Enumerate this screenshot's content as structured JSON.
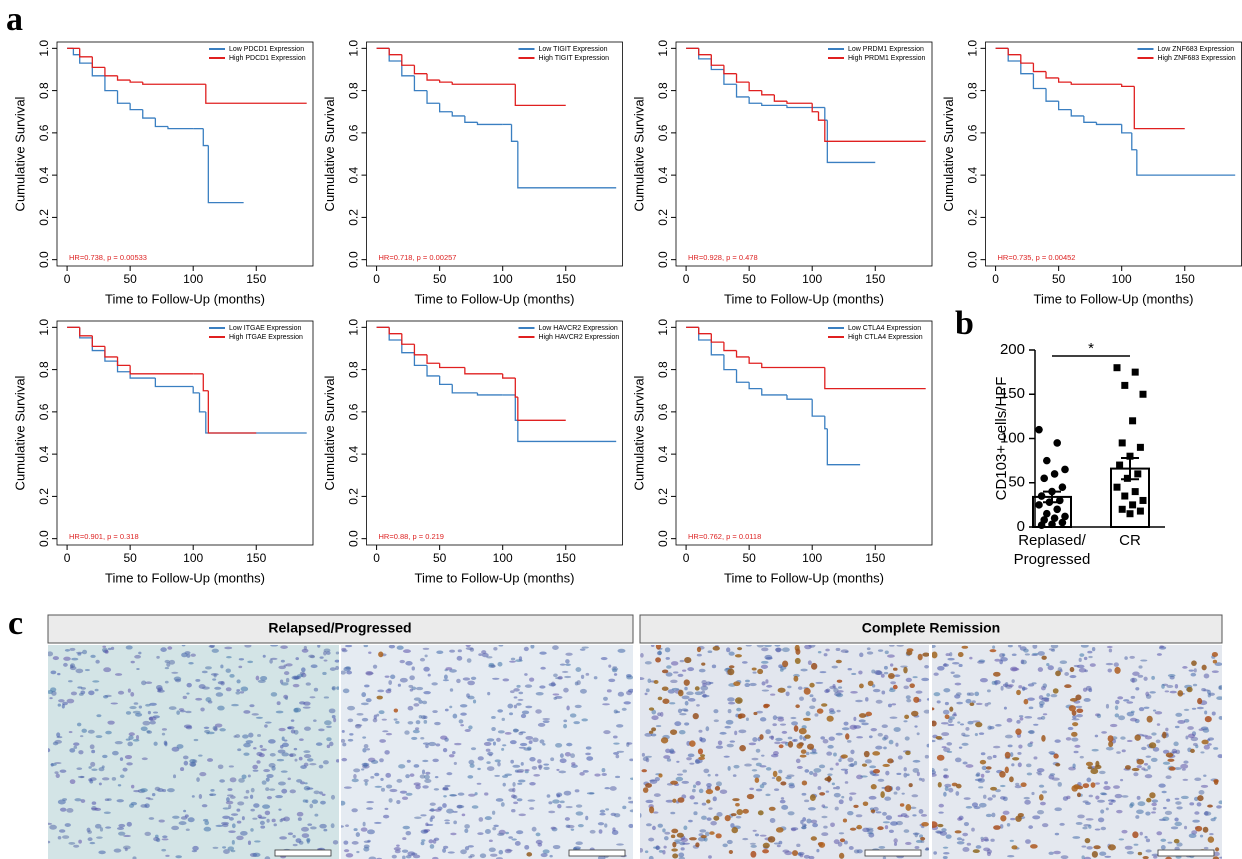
{
  "panel_labels": [
    "a",
    "b",
    "c"
  ],
  "chart_data": [
    {
      "type": "line",
      "xlabel": "Time to Follow-Up (months)",
      "ylabel": "Cumulative Survival",
      "annotation": "HR=0.738, p = 0.00533",
      "xlim": [
        -8,
        195
      ],
      "ylim": [
        -0.03,
        1.03
      ],
      "xticks": [
        0,
        50,
        100,
        150
      ],
      "yticks": [
        {
          "value": 0,
          "label": "0.0"
        },
        0.2,
        0.4,
        0.6,
        0.8,
        {
          "value": 1,
          "label": "1.0"
        }
      ],
      "series": [
        {
          "name": "Low PDCD1 Expression",
          "color": "#3a7fc1",
          "x": [
            0,
            5,
            10,
            20,
            30,
            40,
            50,
            60,
            70,
            80,
            100,
            108,
            112,
            140
          ],
          "values": [
            1,
            0.97,
            0.93,
            0.87,
            0.8,
            0.74,
            0.71,
            0.67,
            0.63,
            0.62,
            0.62,
            0.54,
            0.27,
            0.27
          ]
        },
        {
          "name": "High PDCD1 Expression",
          "color": "#e02020",
          "x": [
            0,
            10,
            20,
            30,
            40,
            50,
            60,
            110,
            190
          ],
          "values": [
            1,
            0.96,
            0.91,
            0.87,
            0.85,
            0.84,
            0.83,
            0.74,
            0.74
          ]
        }
      ]
    },
    {
      "type": "line",
      "xlabel": "Time to Follow-Up (months)",
      "ylabel": "Cumulative Survival",
      "annotation": "HR=0.718, p = 0.00257",
      "xlim": [
        -8,
        195
      ],
      "ylim": [
        -0.03,
        1.03
      ],
      "xticks": [
        0,
        50,
        100,
        150
      ],
      "yticks": [
        {
          "value": 0,
          "label": "0.0"
        },
        0.2,
        0.4,
        0.6,
        0.8,
        {
          "value": 1,
          "label": "1.0"
        }
      ],
      "series": [
        {
          "name": "Low TIGIT Expression",
          "color": "#3a7fc1",
          "x": [
            0,
            10,
            20,
            30,
            40,
            50,
            60,
            70,
            80,
            100,
            107,
            112,
            190
          ],
          "values": [
            1,
            0.94,
            0.87,
            0.8,
            0.74,
            0.7,
            0.68,
            0.65,
            0.64,
            0.64,
            0.56,
            0.34,
            0.34
          ]
        },
        {
          "name": "High TIGIT Expression",
          "color": "#e02020",
          "x": [
            0,
            10,
            20,
            30,
            40,
            50,
            60,
            110,
            150
          ],
          "values": [
            1,
            0.97,
            0.92,
            0.88,
            0.85,
            0.84,
            0.83,
            0.73,
            0.73
          ]
        }
      ]
    },
    {
      "type": "line",
      "xlabel": "Time to Follow-Up (months)",
      "ylabel": "Cumulative Survival",
      "annotation": "HR=0.928, p = 0.478",
      "xlim": [
        -8,
        195
      ],
      "ylim": [
        -0.03,
        1.03
      ],
      "xticks": [
        0,
        50,
        100,
        150
      ],
      "yticks": [
        {
          "value": 0,
          "label": "0.0"
        },
        0.2,
        0.4,
        0.6,
        0.8,
        {
          "value": 1,
          "label": "1.0"
        }
      ],
      "series": [
        {
          "name": "Low PRDM1 Expression",
          "color": "#3a7fc1",
          "x": [
            0,
            10,
            20,
            30,
            40,
            50,
            60,
            80,
            100,
            110,
            112,
            150
          ],
          "values": [
            1,
            0.95,
            0.9,
            0.83,
            0.77,
            0.74,
            0.73,
            0.72,
            0.72,
            0.66,
            0.46,
            0.46
          ]
        },
        {
          "name": "High PRDM1 Expression",
          "color": "#e02020",
          "x": [
            0,
            10,
            20,
            30,
            40,
            50,
            60,
            70,
            80,
            100,
            105,
            110,
            190
          ],
          "values": [
            1,
            0.97,
            0.92,
            0.88,
            0.84,
            0.8,
            0.78,
            0.75,
            0.74,
            0.7,
            0.66,
            0.56,
            0.56
          ]
        }
      ]
    },
    {
      "type": "line",
      "xlabel": "Time to Follow-Up (months)",
      "ylabel": "Cumulative Survival",
      "annotation": "HR=0.735, p = 0.00452",
      "xlim": [
        -8,
        195
      ],
      "ylim": [
        -0.03,
        1.03
      ],
      "xticks": [
        0,
        50,
        100,
        150
      ],
      "yticks": [
        {
          "value": 0,
          "label": "0.0"
        },
        0.2,
        0.4,
        0.6,
        0.8,
        {
          "value": 1,
          "label": "1.0"
        }
      ],
      "series": [
        {
          "name": "Low ZNF683 Expression",
          "color": "#3a7fc1",
          "x": [
            0,
            10,
            20,
            30,
            40,
            50,
            60,
            70,
            80,
            100,
            108,
            112,
            190
          ],
          "values": [
            1,
            0.94,
            0.88,
            0.81,
            0.75,
            0.71,
            0.68,
            0.65,
            0.64,
            0.6,
            0.52,
            0.4,
            0.4
          ]
        },
        {
          "name": "High ZNF683 Expression",
          "color": "#e02020",
          "x": [
            0,
            10,
            20,
            30,
            40,
            50,
            60,
            100,
            110,
            150
          ],
          "values": [
            1,
            0.97,
            0.93,
            0.89,
            0.86,
            0.84,
            0.83,
            0.82,
            0.62,
            0.62
          ]
        }
      ]
    },
    {
      "type": "line",
      "xlabel": "Time to Follow-Up (months)",
      "ylabel": "Cumulative Survival",
      "annotation": "HR=0.901, p = 0.318",
      "xlim": [
        -8,
        195
      ],
      "ylim": [
        -0.03,
        1.03
      ],
      "xticks": [
        0,
        50,
        100,
        150
      ],
      "yticks": [
        {
          "value": 0,
          "label": "0.0"
        },
        0.2,
        0.4,
        0.6,
        0.8,
        {
          "value": 1,
          "label": "1.0"
        }
      ],
      "series": [
        {
          "name": "Low ITGAE Expression",
          "color": "#3a7fc1",
          "x": [
            0,
            10,
            20,
            30,
            40,
            50,
            70,
            100,
            105,
            110,
            190
          ],
          "values": [
            1,
            0.95,
            0.89,
            0.84,
            0.79,
            0.76,
            0.72,
            0.69,
            0.6,
            0.5,
            0.5
          ]
        },
        {
          "name": "High ITGAE Expression",
          "color": "#e02020",
          "x": [
            0,
            10,
            20,
            30,
            40,
            50,
            100,
            108,
            112,
            150
          ],
          "values": [
            1,
            0.96,
            0.91,
            0.86,
            0.82,
            0.78,
            0.78,
            0.7,
            0.5,
            0.5
          ]
        }
      ]
    },
    {
      "type": "line",
      "xlabel": "Time to Follow-Up (months)",
      "ylabel": "Cumulative Survival",
      "annotation": "HR=0.88, p = 0.219",
      "xlim": [
        -8,
        195
      ],
      "ylim": [
        -0.03,
        1.03
      ],
      "xticks": [
        0,
        50,
        100,
        150
      ],
      "yticks": [
        {
          "value": 0,
          "label": "0.0"
        },
        0.2,
        0.4,
        0.6,
        0.8,
        {
          "value": 1,
          "label": "1.0"
        }
      ],
      "series": [
        {
          "name": "Low HAVCR2 Expression",
          "color": "#3a7fc1",
          "x": [
            0,
            10,
            20,
            30,
            40,
            50,
            60,
            80,
            100,
            110,
            112,
            190
          ],
          "values": [
            1,
            0.94,
            0.88,
            0.82,
            0.77,
            0.73,
            0.69,
            0.68,
            0.68,
            0.56,
            0.46,
            0.46
          ]
        },
        {
          "name": "High HAVCR2 Expression",
          "color": "#e02020",
          "x": [
            0,
            10,
            20,
            30,
            40,
            50,
            70,
            100,
            110,
            112,
            150
          ],
          "values": [
            1,
            0.97,
            0.92,
            0.87,
            0.83,
            0.81,
            0.78,
            0.76,
            0.67,
            0.56,
            0.56
          ]
        }
      ]
    },
    {
      "type": "line",
      "xlabel": "Time to Follow-Up (months)",
      "ylabel": "Cumulative Survival",
      "annotation": "HR=0.762, p = 0.0118",
      "xlim": [
        -8,
        195
      ],
      "ylim": [
        -0.03,
        1.03
      ],
      "xticks": [
        0,
        50,
        100,
        150
      ],
      "yticks": [
        {
          "value": 0,
          "label": "0.0"
        },
        0.2,
        0.4,
        0.6,
        0.8,
        {
          "value": 1,
          "label": "1.0"
        }
      ],
      "series": [
        {
          "name": "Low CTLA4 Expression",
          "color": "#3a7fc1",
          "x": [
            0,
            10,
            20,
            30,
            40,
            50,
            60,
            80,
            100,
            110,
            112,
            138
          ],
          "values": [
            1,
            0.94,
            0.87,
            0.8,
            0.74,
            0.71,
            0.68,
            0.66,
            0.58,
            0.52,
            0.35,
            0.35
          ]
        },
        {
          "name": "High CTLA4 Expression",
          "color": "#e02020",
          "x": [
            0,
            10,
            20,
            30,
            40,
            50,
            60,
            110,
            190
          ],
          "values": [
            1,
            0.97,
            0.93,
            0.89,
            0.86,
            0.83,
            0.81,
            0.71,
            0.71
          ]
        }
      ]
    },
    {
      "type": "bar",
      "ylabel": "CD103+ cells/HPF",
      "categories": [
        "Replased/Progressed",
        "CR"
      ],
      "values": [
        34,
        66
      ],
      "errors": [
        6,
        12
      ],
      "annotation": "*",
      "points": [
        [
          110,
          95,
          75,
          65,
          60,
          55,
          45,
          40,
          35,
          30,
          28,
          25,
          20,
          15,
          12,
          10,
          8,
          5,
          3,
          2
        ],
        [
          180,
          175,
          160,
          150,
          120,
          95,
          90,
          80,
          70,
          60,
          55,
          45,
          40,
          35,
          30,
          25,
          20,
          18,
          15
        ]
      ],
      "ylim": [
        0,
        200
      ],
      "yticks": [
        0,
        50,
        100,
        150,
        200
      ]
    }
  ],
  "panel_c": {
    "headers": [
      "Relapsed/Progressed",
      "Complete Remission"
    ]
  }
}
